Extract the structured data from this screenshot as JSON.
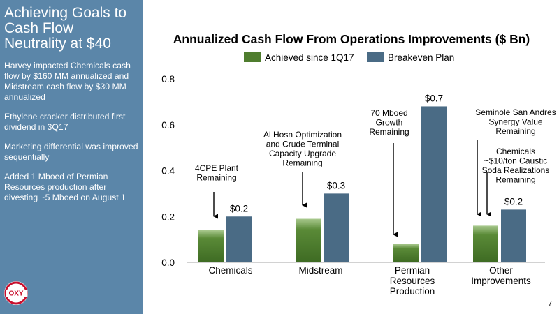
{
  "sidebar": {
    "title_lines": [
      "Achieving Goals to",
      "Cash Flow",
      "Neutrality at $40"
    ],
    "bullets": [
      "Harvey impacted Chemicals cash flow by $160 MM annualized and Midstream cash flow by $30 MM annualized",
      "Ethylene cracker distributed first dividend in 3Q17",
      "Marketing differential was improved sequentially",
      "Added 1 Mboed of Permian Resources production after divesting ~5 Mboed on August 1"
    ]
  },
  "logo": {
    "text": "OXY"
  },
  "page_number": "7",
  "colors": {
    "sidebar": "#5b86a9",
    "achieved": "#4f7d2e",
    "plan": "#4a6b85"
  },
  "chart_data": {
    "type": "bar",
    "title": "Annualized Cash Flow From Operations Improvements ($ Bn)",
    "categories": [
      [
        "Chemicals"
      ],
      [
        "Midstream"
      ],
      [
        "Permian",
        "Resources",
        "Production"
      ],
      [
        "Other",
        "Improvements"
      ]
    ],
    "series": [
      {
        "name": "Achieved since 1Q17",
        "values": [
          0.14,
          0.19,
          0.08,
          0.16
        ]
      },
      {
        "name": "Breakeven Plan",
        "values": [
          0.2,
          0.3,
          0.68,
          0.23
        ],
        "labels": [
          "$0.2",
          "$0.3",
          "$0.7",
          "$0.2"
        ]
      }
    ],
    "ylim": [
      0,
      0.8
    ],
    "yticks": [
      "0.0",
      "0.2",
      "0.4",
      "0.6",
      "0.8"
    ],
    "legend_position": "top",
    "grid": false,
    "annotations": [
      {
        "lines": [
          "4CPE Plant",
          "Remaining"
        ],
        "category": 0
      },
      {
        "lines": [
          "Al Hosn Optimization",
          "and Crude Terminal",
          "Capacity Upgrade",
          "Remaining"
        ],
        "category": 1
      },
      {
        "lines": [
          "70 Mboed",
          "Growth",
          "Remaining"
        ],
        "category": 2
      },
      {
        "lines": [
          "Seminole San Andres",
          "Synergy Value",
          "Remaining"
        ],
        "category": 3
      },
      {
        "lines": [
          "Chemicals",
          "~$10/ton Caustic",
          "Soda Realizations",
          "Remaining"
        ],
        "category": 3
      }
    ]
  }
}
